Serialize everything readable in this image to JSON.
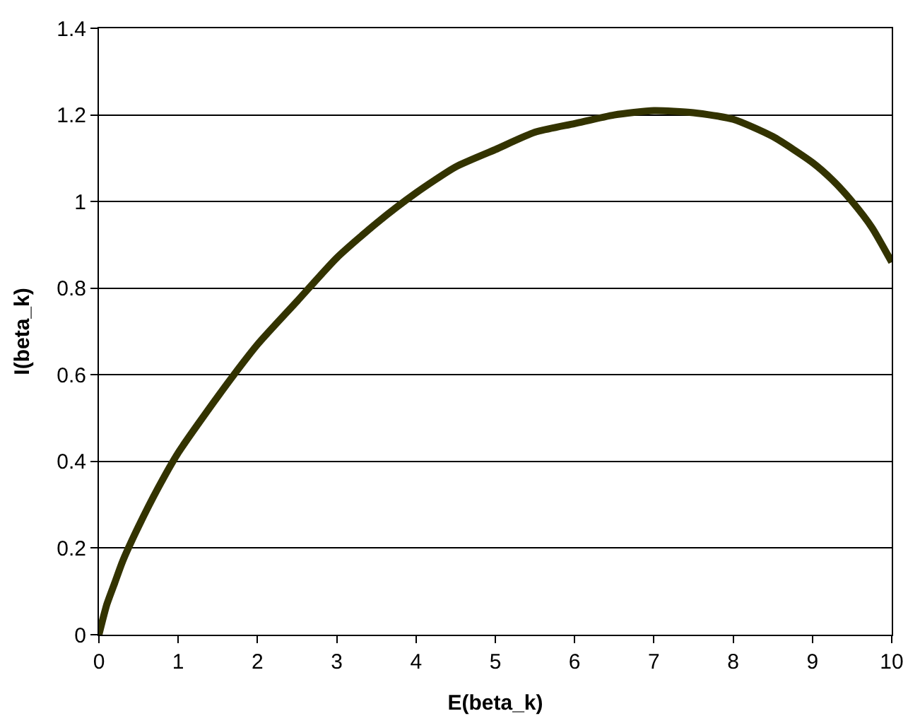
{
  "chart_data": {
    "type": "line",
    "xlabel": "E(beta_k)",
    "ylabel": "I(beta_k)",
    "x": [
      0,
      0.1,
      0.2,
      0.3,
      0.5,
      0.75,
      1,
      1.5,
      2,
      2.5,
      3,
      3.5,
      4,
      4.5,
      5,
      5.5,
      6,
      6.5,
      7,
      7.5,
      8,
      8.5,
      9,
      9.25,
      9.5,
      9.75,
      10
    ],
    "series": [
      {
        "color": "#333300",
        "values": [
          0,
          0.07,
          0.12,
          0.17,
          0.25,
          0.34,
          0.42,
          0.55,
          0.67,
          0.77,
          0.87,
          0.95,
          1.02,
          1.08,
          1.12,
          1.16,
          1.18,
          1.2,
          1.21,
          1.205,
          1.19,
          1.15,
          1.09,
          1.05,
          1.0,
          0.94,
          0.86
        ]
      }
    ],
    "xlim": [
      0,
      10
    ],
    "xticks": [
      0,
      1,
      2,
      3,
      4,
      5,
      6,
      7,
      8,
      9,
      10
    ],
    "ylim": [
      0,
      1.4
    ],
    "yticks": [
      0,
      0.2,
      0.4,
      0.6,
      0.8,
      1,
      1.2,
      1.4
    ],
    "grid": "y",
    "marker": "none",
    "line_style": "solid"
  }
}
